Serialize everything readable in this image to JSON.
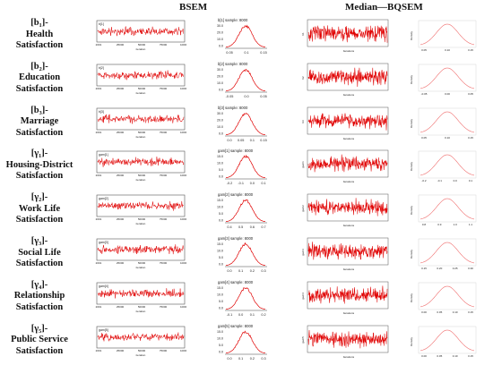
{
  "headers": {
    "bsem": "BSEM",
    "bqsem": "Median—BQSEM"
  },
  "rows": [
    {
      "label": [
        "[b₁]-",
        "Health",
        "Satisfaction"
      ],
      "trace_label": "b[1]",
      "density_title": "b[1] sample: 8000",
      "density_xticks": [
        "0.05",
        "0.1",
        "0.15"
      ],
      "density_yticks": [
        "30.0",
        "20.0",
        "10.0",
        "0.0"
      ],
      "q_trace_label": "b1",
      "q_density_xticks": [
        "0.05",
        "0.10",
        "0.15"
      ]
    },
    {
      "label": [
        "[b₂]-",
        "Education",
        "Satisfaction"
      ],
      "trace_label": "b[2]",
      "density_title": "b[2] sample: 8000",
      "density_xticks": [
        "-0.05",
        "0.0",
        "0.05"
      ],
      "density_yticks": [
        "30.0",
        "20.0",
        "10.0",
        "0.0"
      ],
      "q_trace_label": "b2",
      "q_density_xticks": [
        "-0.05",
        "0.00",
        "0.05"
      ]
    },
    {
      "label": [
        "[b₃]-",
        "Marriage",
        "Satisfaction"
      ],
      "trace_label": "b[3]",
      "density_title": "b[3] sample: 8000",
      "density_xticks": [
        "0.0",
        "0.05",
        "0.1",
        "0.15"
      ],
      "density_yticks": [
        "30.0",
        "20.0",
        "10.0",
        "0.0"
      ],
      "q_trace_label": "b3",
      "q_density_xticks": [
        "0.05",
        "0.10",
        "0.15"
      ]
    },
    {
      "label": [
        "[γ₁]-",
        "Housing-District",
        "Satisfaction"
      ],
      "trace_label": "gam[1]",
      "density_title": "gam[1] sample: 8000",
      "density_xticks": [
        "-0.2",
        "-0.1",
        "0.0",
        "0.1"
      ],
      "density_yticks": [
        "15.0",
        "10.0",
        "5.0",
        "0.0"
      ],
      "q_trace_label": "gam1",
      "q_density_xticks": [
        "-0.2",
        "-0.1",
        "0.0",
        "0.1"
      ]
    },
    {
      "label": [
        "[γ₂]-",
        "Work Life",
        "Satisfaction"
      ],
      "trace_label": "gam[2]",
      "density_title": "gam[2] sample: 8000",
      "density_xticks": [
        "0.4",
        "0.5",
        "0.6",
        "0.7"
      ],
      "density_yticks": [
        "15.0",
        "10.0",
        "5.0",
        "0.0"
      ],
      "q_trace_label": "gam2",
      "q_density_xticks": [
        "0.8",
        "0.9",
        "1.0",
        "1.1"
      ]
    },
    {
      "label": [
        "[γ₃]-",
        "Social Life",
        "Satisfaction"
      ],
      "trace_label": "gam[3]",
      "density_title": "gam[3] sample: 8000",
      "density_xticks": [
        "0.0",
        "0.1",
        "0.2",
        "0.3"
      ],
      "density_yticks": [
        "15.0",
        "10.0",
        "5.0",
        "0.0"
      ],
      "q_trace_label": "gam3",
      "q_density_xticks": [
        "0.15",
        "0.20",
        "0.25",
        "0.30"
      ]
    },
    {
      "label": [
        "[γ₄]-",
        "Relationship",
        "Satisfaction"
      ],
      "trace_label": "gam[4]",
      "density_title": "gam[4] sample: 8000",
      "density_xticks": [
        "-0.1",
        "0.0",
        "0.1",
        "0.2"
      ],
      "density_yticks": [
        "15.0",
        "10.0",
        "5.0",
        "0.0"
      ],
      "q_trace_label": "gam4",
      "q_density_xticks": [
        "0.00",
        "0.05",
        "0.10",
        "0.15"
      ]
    },
    {
      "label": [
        "[γ₅]-",
        "Public Service",
        "Satisfaction"
      ],
      "trace_label": "gam[5]",
      "density_title": "gam[5] sample: 8000",
      "density_xticks": [
        "0.0",
        "0.1",
        "0.2",
        "0.3"
      ],
      "density_yticks": [
        "15.0",
        "10.0",
        "5.0",
        "0.0"
      ],
      "q_trace_label": "gam5",
      "q_density_xticks": [
        "0.00",
        "0.05",
        "0.10",
        "0.15"
      ]
    }
  ],
  "trace_xticks": [
    "2001",
    "25000",
    "50000",
    "75000",
    "100000"
  ],
  "trace_xlabel": "iteration",
  "q_trace_xlabel": "Iterations",
  "q_density_ylabel": "Density",
  "colors": {
    "trace": "#e00000",
    "density": "#e00000",
    "q_density": "#f07070",
    "frame": "#555555"
  }
}
